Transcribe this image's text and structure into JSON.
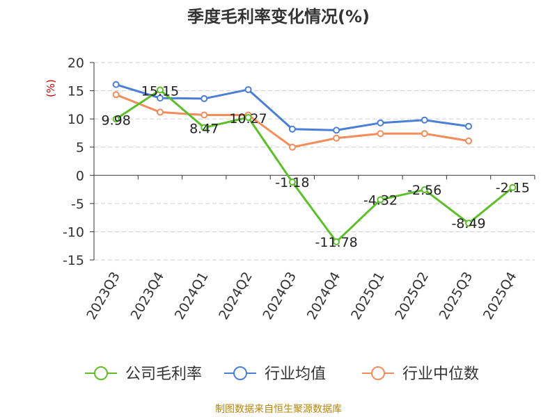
{
  "title": "季度毛利率变化情况(%)",
  "footer": "制图数据来自恒生聚源数据库",
  "chart_data": {
    "type": "line",
    "title": "季度毛利率变化情况(%)",
    "ylabel": "(%)",
    "ylim": [
      -15,
      20
    ],
    "yticks": [
      20,
      15,
      10,
      5,
      0,
      -5,
      -10,
      -15
    ],
    "grid": true,
    "legend_position": "bottom",
    "categories": [
      "2023Q3",
      "2023Q4",
      "2024Q1",
      "2024Q2",
      "2024Q3",
      "2024Q4",
      "2025Q1",
      "2025Q2",
      "2025Q3",
      "2025Q4"
    ],
    "series": [
      {
        "name": "公司毛利率",
        "color": "#5cbf2a",
        "values": [
          9.98,
          15.15,
          8.47,
          10.27,
          -1.18,
          -11.78,
          -4.32,
          -2.56,
          -8.49,
          -2.15
        ],
        "labels": [
          "9.98",
          "15.15",
          "8.47",
          "10.27",
          "-1.18",
          "-11.78",
          "-4.32",
          "-2.56",
          "-8.49",
          "-2.15"
        ]
      },
      {
        "name": "行业均值",
        "color": "#4a7fd8",
        "values": [
          16.1,
          13.7,
          13.6,
          15.2,
          8.2,
          8.0,
          9.3,
          9.8,
          8.7,
          null
        ]
      },
      {
        "name": "行业中位数",
        "color": "#f58c5a",
        "values": [
          14.3,
          11.2,
          10.7,
          10.7,
          5.0,
          6.6,
          7.4,
          7.4,
          6.1,
          null
        ]
      }
    ]
  }
}
